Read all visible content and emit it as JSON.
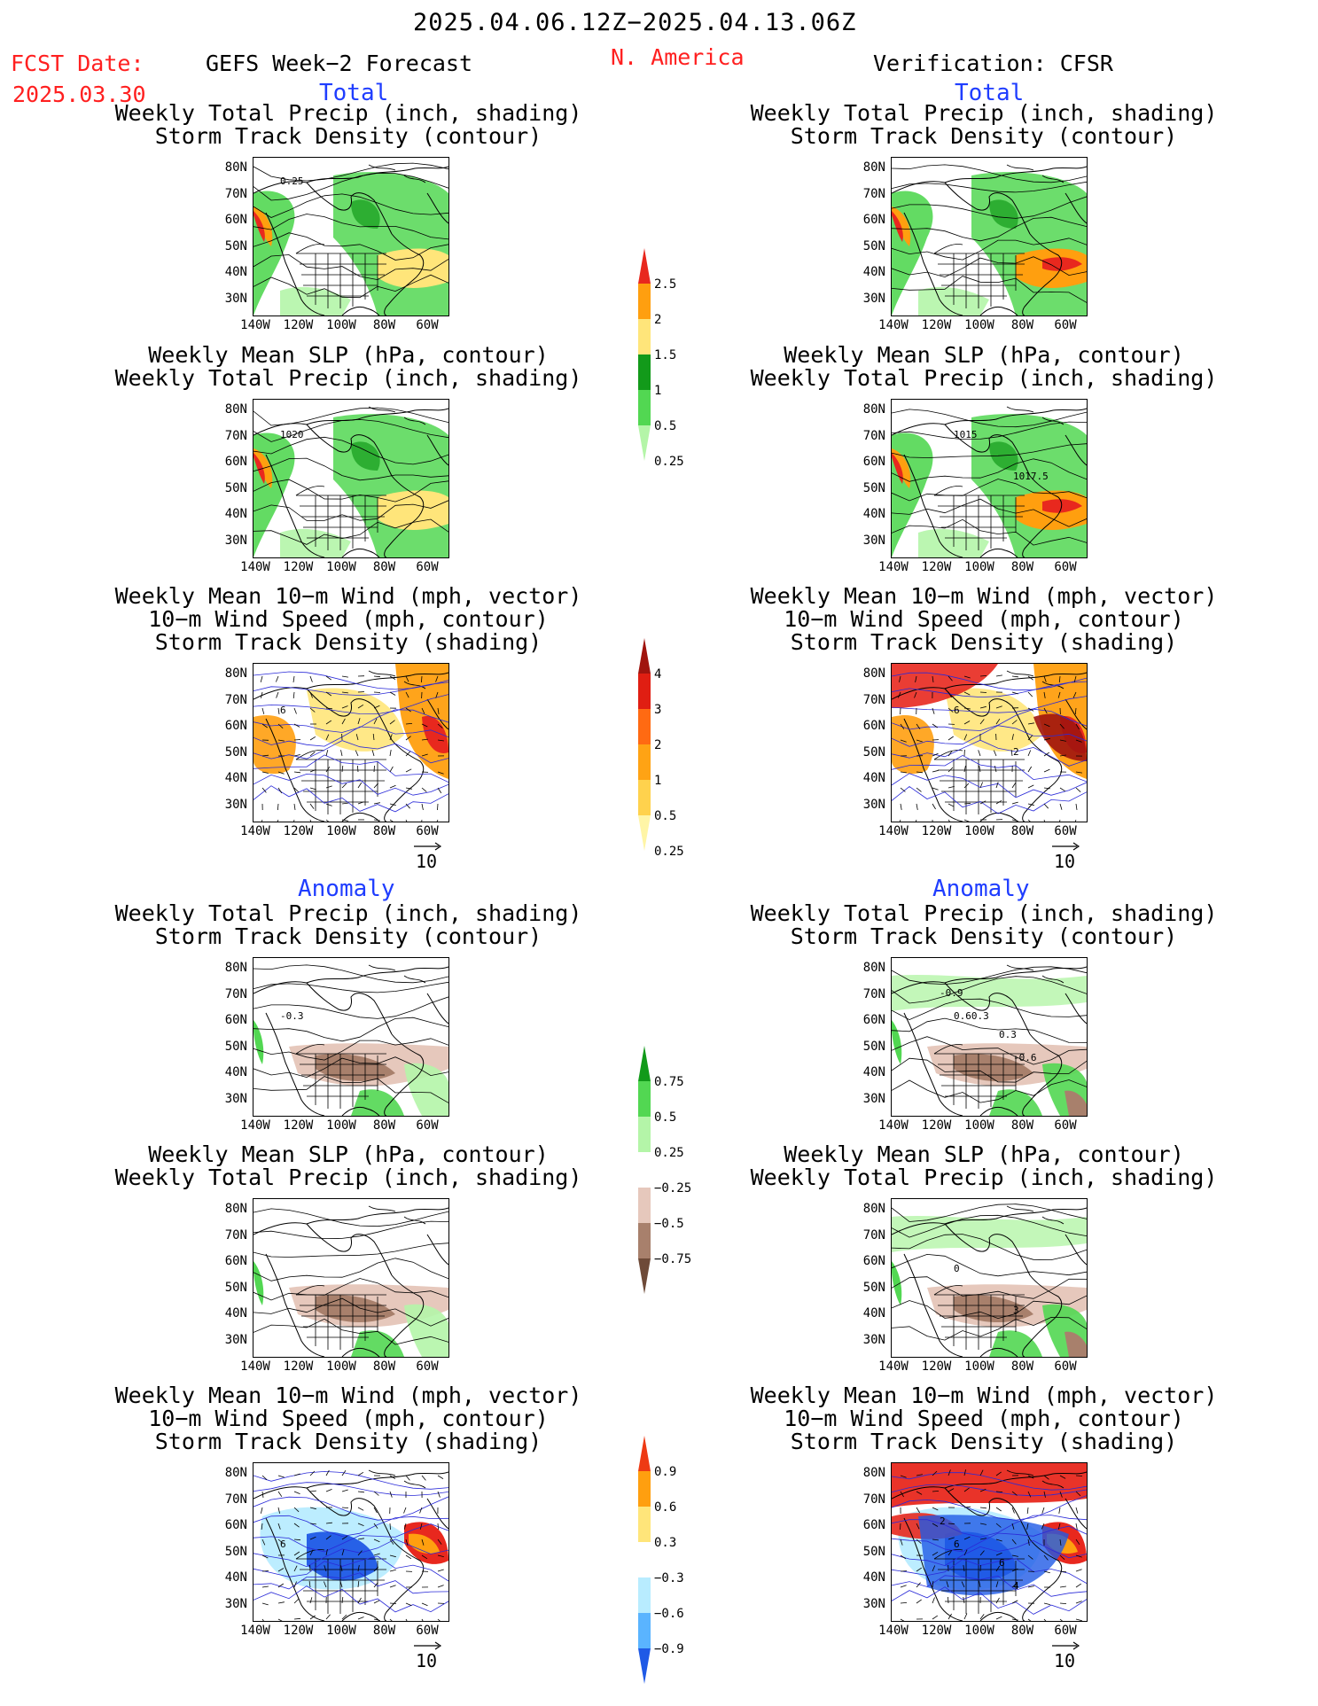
{
  "header": {
    "date_range": "2025.04.06.12Z−2025.04.13.06Z",
    "fcst_date_label": "FCST Date:",
    "fcst_date_value": "2025.03.30",
    "forecast_label": "GEFS Week−2 Forecast",
    "region": "N. America",
    "verification_label": "Verification: CFSR"
  },
  "section_labels": {
    "total": "Total",
    "anomaly": "Anomaly"
  },
  "panel_titles": {
    "precip_storm": [
      "Weekly Total Precip (inch, shading)",
      "Storm Track Density (contour)"
    ],
    "slp_precip": [
      "Weekly Mean SLP (hPa, contour)",
      "Weekly Total Precip (inch, shading)"
    ],
    "wind_storm": [
      "Weekly Mean 10−m Wind (mph, vector)",
      "10−m Wind Speed (mph, contour)",
      "Storm Track Density (shading)"
    ]
  },
  "axes": {
    "lat_labels": [
      "80N",
      "70N",
      "60N",
      "50N",
      "40N",
      "30N"
    ],
    "lon_labels": [
      "140W",
      "120W",
      "100W",
      "80W",
      "60W"
    ]
  },
  "vector_reference": "10",
  "contour_labels": {
    "fcst_total_precip": "0.25",
    "fcst_total_slp": "1020",
    "fcst_total_wind": "6",
    "ver_total_slp_a": "1015",
    "ver_total_slp_b": "1017.5",
    "ver_total_wind_a": "6",
    "ver_total_wind_b": "2",
    "fcst_anom_precip": "-0.3",
    "ver_anom_precip_a": "0.60.3",
    "ver_anom_precip_b": "-0.6",
    "ver_anom_precip_c": "-0.9",
    "ver_anom_precip_d": "0.3",
    "ver_anom_slp_a": "0",
    "ver_anom_slp_b": "3",
    "fcst_anom_wind": "6",
    "ver_anom_wind_a": "6",
    "ver_anom_wind_b": "4",
    "ver_anom_wind_c": "2",
    "ver_anom_wind_d": "6"
  },
  "colorbars": {
    "precip_total": {
      "labels": [
        "2.5",
        "2",
        "1.5",
        "1",
        "0.5",
        "0.25"
      ],
      "colors": [
        "#e8281e",
        "#ff9f0f",
        "#ffe57a",
        "#129a1a",
        "#52d752",
        "#b4f5a8"
      ]
    },
    "storm_total": {
      "labels": [
        "4",
        "3",
        "2",
        "1",
        "0.5",
        "0.25"
      ],
      "colors": [
        "#a0140e",
        "#e01e12",
        "#ff6a12",
        "#ffa314",
        "#ffd24d",
        "#fff5a6"
      ]
    },
    "precip_anom": {
      "labels": [
        "0.75",
        "0.5",
        "0.25",
        "−0.25",
        "−0.5",
        "−0.75"
      ],
      "colors": [
        "#129a1a",
        "#52d752",
        "#b4f5a8",
        "#ffffff",
        "#e6c8bc",
        "#a8806c",
        "#6e4a38"
      ]
    },
    "storm_anom": {
      "labels": [
        "0.9",
        "0.6",
        "0.3",
        "−0.3",
        "−0.6",
        "−0.9"
      ],
      "colors": [
        "#ee3a14",
        "#ff9f0f",
        "#ffe57a",
        "#ffffff",
        "#b8ecff",
        "#5ab4ff",
        "#1f5ae6"
      ]
    }
  },
  "field_colors": {
    "land_outline": "#000000",
    "wind_contour": "#2a2ad8",
    "precip_green": "#52d752",
    "precip_light": "#b4f5a8",
    "precip_dark": "#129a1a",
    "precip_orange": "#ff9f0f",
    "precip_yellow": "#ffe57a",
    "precip_red": "#e8281e",
    "dry_brown_light": "#e6c8bc",
    "dry_brown": "#a8806c",
    "cold_blue": "#1f5ae6",
    "cold_light": "#b8ecff"
  }
}
